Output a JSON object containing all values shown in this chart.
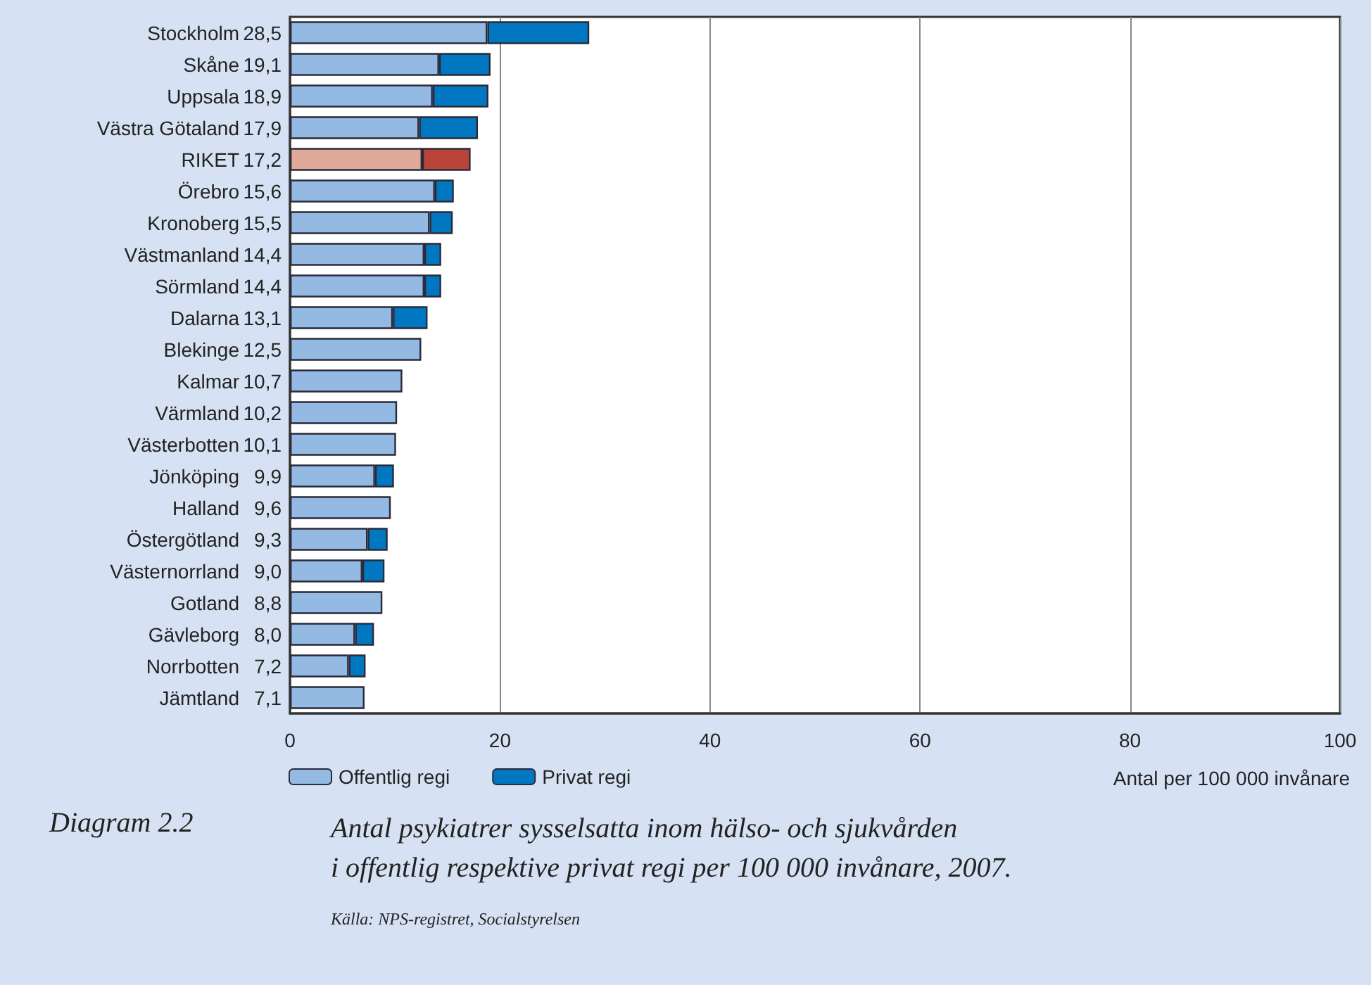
{
  "chart_data": {
    "type": "bar",
    "orientation": "horizontal",
    "stacked": true,
    "title": "Antal psykiatrer sysselsatta inom hälso- och sjukvården\ni offentlig respektive privat regi per 100 000 invånare, 2007.",
    "xlabel": "Antal per 100 000 invånare",
    "annotations": [
      "Diagram 2.2",
      "Källa: NPS-registret, Socialstyrelsen"
    ],
    "categories": [
      "Stockholm",
      "Skåne",
      "Uppsala",
      "Västra Götaland",
      "RIKET",
      "Örebro",
      "Kronoberg",
      "Västmanland",
      "Sörmland",
      "Dalarna",
      "Blekinge",
      "Kalmar",
      "Värmland",
      "Västerbotten",
      "Jönköping",
      "Halland",
      "Östergötland",
      "Västernorrland",
      "Gotland",
      "Gävleborg",
      "Norrbotten",
      "Jämtland"
    ],
    "series": [
      {
        "name": "Offentlig regi",
        "color": "#94b9e3",
        "colors": [
          "#94b9e3",
          "#94b9e3",
          "#94b9e3",
          "#94b9e3",
          "#e0aa98",
          "#94b9e3",
          "#94b9e3",
          "#94b9e3",
          "#94b9e3",
          "#94b9e3",
          "#94b9e3",
          "#94b9e3",
          "#94b9e3",
          "#94b9e3",
          "#94b9e3",
          "#94b9e3",
          "#94b9e3",
          "#94b9e3",
          "#94b9e3",
          "#94b9e3",
          "#94b9e3",
          "#94b9e3"
        ],
        "values": [
          18.8,
          14.2,
          13.6,
          12.3,
          12.6,
          13.8,
          13.3,
          12.8,
          12.8,
          9.8,
          12.5,
          10.7,
          10.2,
          10.1,
          8.1,
          9.6,
          7.4,
          6.9,
          8.8,
          6.2,
          5.6,
          7.1
        ]
      },
      {
        "name": "Privat regi",
        "color": "#0077c0",
        "colors": [
          "#0077c0",
          "#0077c0",
          "#0077c0",
          "#0077c0",
          "#b9453a",
          "#0077c0",
          "#0077c0",
          "#0077c0",
          "#0077c0",
          "#0077c0",
          "#0077c0",
          "#0077c0",
          "#0077c0",
          "#0077c0",
          "#0077c0",
          "#0077c0",
          "#0077c0",
          "#0077c0",
          "#0077c0",
          "#0077c0",
          "#0077c0",
          "#0077c0"
        ],
        "values": [
          9.7,
          4.9,
          5.3,
          5.6,
          4.6,
          1.8,
          2.2,
          1.6,
          1.6,
          3.3,
          0,
          0,
          0,
          0,
          1.8,
          0,
          1.9,
          2.1,
          0,
          1.8,
          1.6,
          0
        ]
      }
    ],
    "totals": [
      "28,5",
      "19,1",
      "18,9",
      "17,9",
      "17,2",
      "15,6",
      "15,5",
      "14,4",
      "14,4",
      "13,1",
      "12,5",
      "10,7",
      "10,2",
      "10,1",
      "9,9",
      "9,6",
      "9,3",
      "9,0",
      "8,8",
      "8,0",
      "7,2",
      "7,1"
    ],
    "xlim": [
      0,
      100
    ],
    "xticks": [
      0,
      20,
      40,
      60,
      80,
      100
    ],
    "grid": "x",
    "legend": "bottom left"
  }
}
